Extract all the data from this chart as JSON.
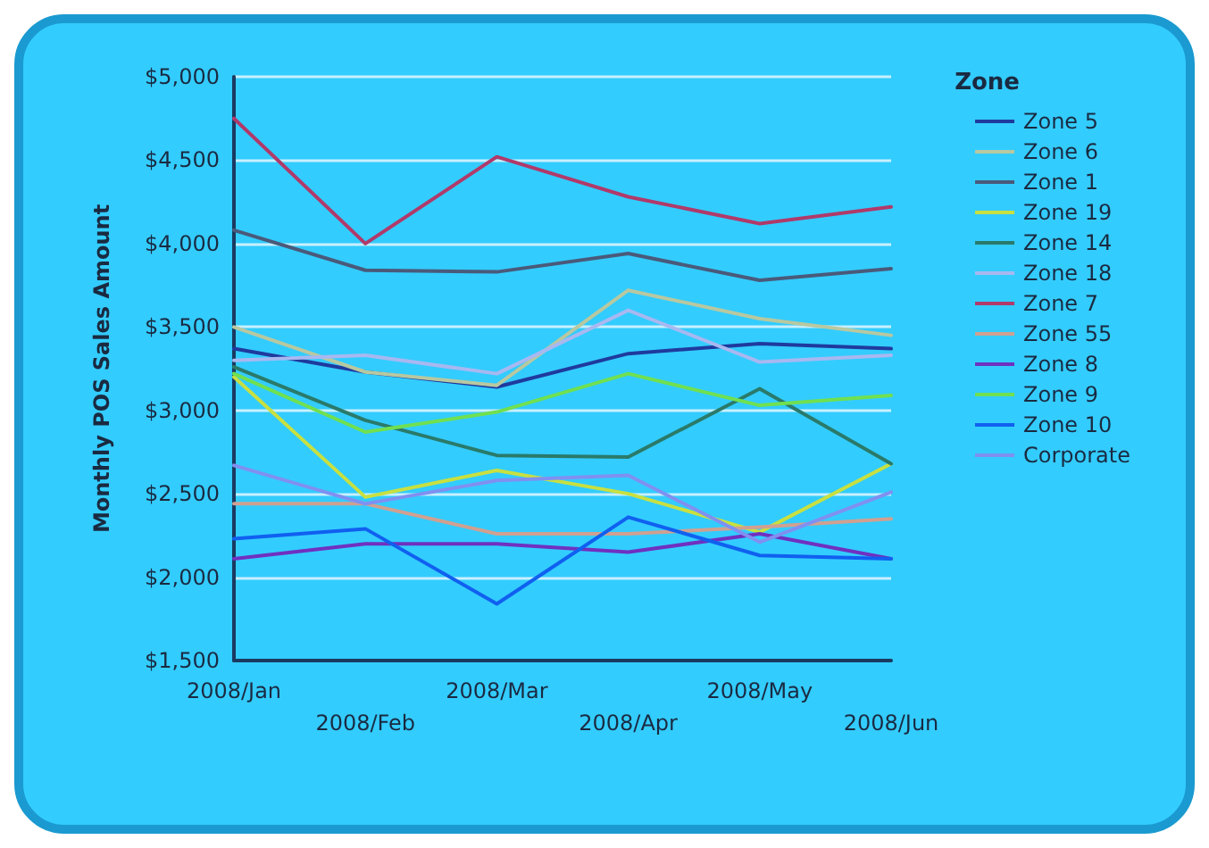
{
  "chart_data": {
    "type": "line",
    "ylabel": "Monthly POS Sales Amount",
    "legend_title": "Zone",
    "legend": "right",
    "grid": "y",
    "marker": "none",
    "line_style": "solid",
    "categories": [
      "2008/Jan",
      "2008/Feb",
      "2008/Mar",
      "2008/Apr",
      "2008/May",
      "2008/Jun"
    ],
    "ylim": [
      1500,
      5000
    ],
    "yticks": [
      {
        "value": 1500,
        "label": "$1,500"
      },
      {
        "value": 2000,
        "label": "$2,000"
      },
      {
        "value": 2500,
        "label": "$2,500"
      },
      {
        "value": 3000,
        "label": "$3,000"
      },
      {
        "value": 3500,
        "label": "$3,500"
      },
      {
        "value": 4000,
        "label": "$4,000"
      },
      {
        "value": 4500,
        "label": "$4,500"
      },
      {
        "value": 5000,
        "label": "$5,000"
      }
    ],
    "series": [
      {
        "name": "Zone 5",
        "color": "#1f3a9e",
        "values": [
          3370,
          3230,
          3140,
          3340,
          3400,
          3370
        ]
      },
      {
        "name": "Zone 6",
        "color": "#b8c8a0",
        "values": [
          3500,
          3230,
          3150,
          3720,
          3550,
          3450
        ]
      },
      {
        "name": "Zone 1",
        "color": "#4a5a7a",
        "values": [
          4080,
          3840,
          3830,
          3940,
          3780,
          3850
        ]
      },
      {
        "name": "Zone 19",
        "color": "#c8e040",
        "values": [
          3200,
          2480,
          2640,
          2500,
          2270,
          2680
        ]
      },
      {
        "name": "Zone 14",
        "color": "#2a7a6a",
        "values": [
          3260,
          2940,
          2730,
          2720,
          3130,
          2680
        ]
      },
      {
        "name": "Zone 18",
        "color": "#a8b8f0",
        "values": [
          3300,
          3330,
          3220,
          3600,
          3290,
          3330
        ]
      },
      {
        "name": "Zone 7",
        "color": "#b03a6a",
        "values": [
          4750,
          4000,
          4520,
          4280,
          4120,
          4220
        ]
      },
      {
        "name": "Zone 55",
        "color": "#d0a090",
        "values": [
          2440,
          2440,
          2260,
          2260,
          2300,
          2350
        ]
      },
      {
        "name": "Zone 8",
        "color": "#7030c0",
        "values": [
          2110,
          2200,
          2200,
          2150,
          2260,
          2110
        ]
      },
      {
        "name": "Zone 9",
        "color": "#70e050",
        "values": [
          3220,
          2870,
          2990,
          3220,
          3030,
          3090
        ]
      },
      {
        "name": "Zone 10",
        "color": "#1060f0",
        "values": [
          2230,
          2290,
          1840,
          2360,
          2130,
          2110
        ]
      },
      {
        "name": "Corporate",
        "color": "#8090f0",
        "values": [
          2670,
          2440,
          2580,
          2610,
          2210,
          2510
        ]
      }
    ]
  }
}
